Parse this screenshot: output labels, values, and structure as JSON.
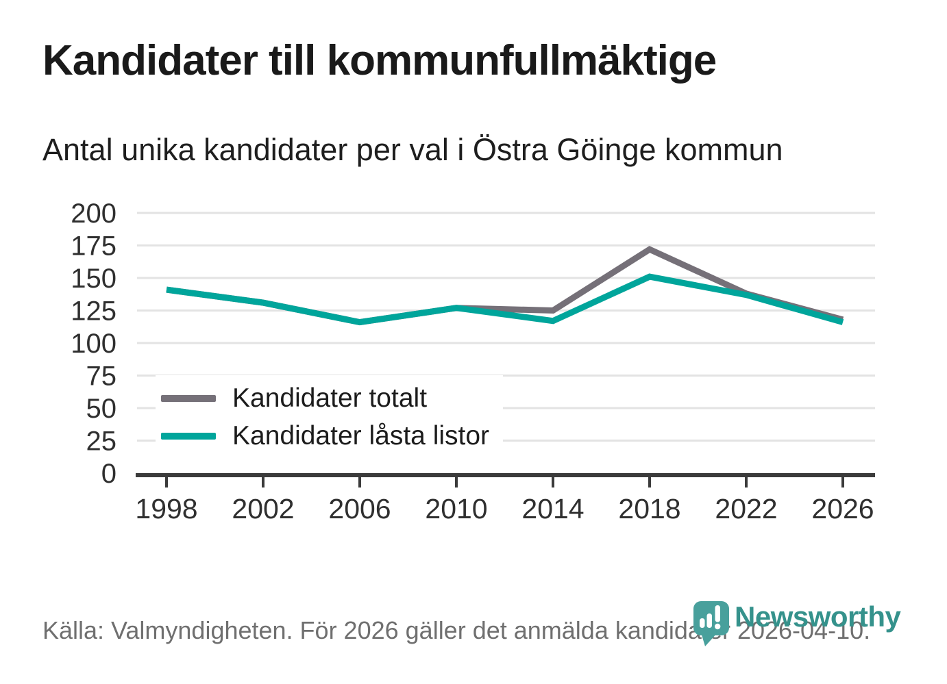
{
  "header": {
    "title": "Kandidater till kommunfullmäktige",
    "subtitle": "Antal unika kandidater per val i Östra Göinge kommun"
  },
  "chart_data": {
    "type": "line",
    "title": "Kandidater till kommunfullmäktige",
    "subtitle": "Antal unika kandidater per val i Östra Göinge kommun",
    "x": [
      1998,
      2002,
      2006,
      2010,
      2014,
      2018,
      2022,
      2026
    ],
    "series": [
      {
        "name": "Kandidater totalt",
        "color": "#757078",
        "values": [
          141,
          131,
          116,
          127,
          125,
          172,
          138,
          118
        ]
      },
      {
        "name": "Kandidater låsta listor",
        "color": "#00a59b",
        "values": [
          141,
          131,
          116,
          127,
          117,
          151,
          137,
          116
        ]
      }
    ],
    "xlabel": "",
    "ylabel": "",
    "ylim": [
      0,
      200
    ],
    "yticks": [
      0,
      25,
      50,
      75,
      100,
      125,
      150,
      175,
      200
    ],
    "grid": "horizontal",
    "legend_position": "inside-bottom-left"
  },
  "footer": {
    "source_note": "Källa: Valmyndigheten. För 2026 gäller det anmälda kandidater 2026-04-10."
  },
  "branding": {
    "wordmark": "Newsworthy",
    "brand_color": "#35928c",
    "icon_color": "#48a09c",
    "icon": "newsworthy-pin-bar-chart-icon"
  },
  "colors": {
    "background": "#ffffff",
    "grid": "#e3e3e3",
    "axis": "#3b3b3b",
    "tick_label": "#2f2f2f",
    "title_text": "#1a1a1a",
    "footer_text": "#6f6f6f"
  }
}
